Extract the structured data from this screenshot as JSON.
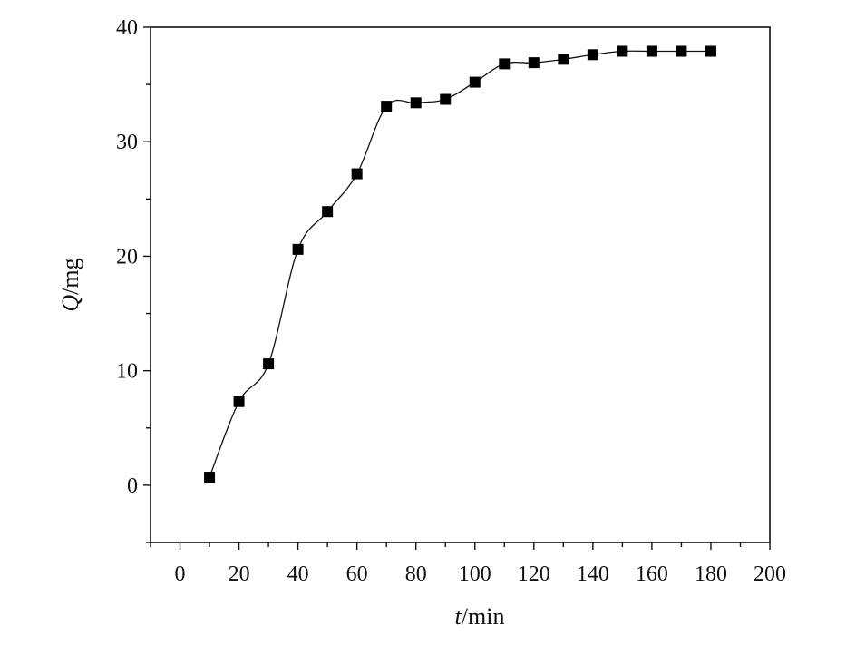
{
  "chart_data": {
    "type": "line",
    "xlabel_italic": "t",
    "xlabel_rest": "/min",
    "ylabel_italic": "Q",
    "ylabel_rest": "/mg",
    "xlim": [
      -10,
      200
    ],
    "ylim": [
      -5,
      40
    ],
    "x_ticks": [
      0,
      20,
      40,
      60,
      80,
      100,
      120,
      140,
      160,
      180,
      200
    ],
    "y_ticks": [
      0,
      10,
      20,
      30,
      40
    ],
    "marker": "filled-square",
    "line_style": "smooth",
    "grid": false,
    "legend": "none",
    "series": [
      {
        "x": [
          10,
          20,
          30,
          40,
          50,
          60,
          70,
          80,
          90,
          100,
          110,
          120,
          130,
          140,
          150,
          160,
          170,
          180
        ],
        "y": [
          0.7,
          7.3,
          10.6,
          20.6,
          23.9,
          27.2,
          33.1,
          33.4,
          33.7,
          35.2,
          36.8,
          36.9,
          37.2,
          37.6,
          37.9,
          37.9,
          37.9,
          37.9
        ]
      }
    ],
    "colors": {
      "line": "#111111",
      "marker": "#000000",
      "axis": "#111111"
    }
  }
}
